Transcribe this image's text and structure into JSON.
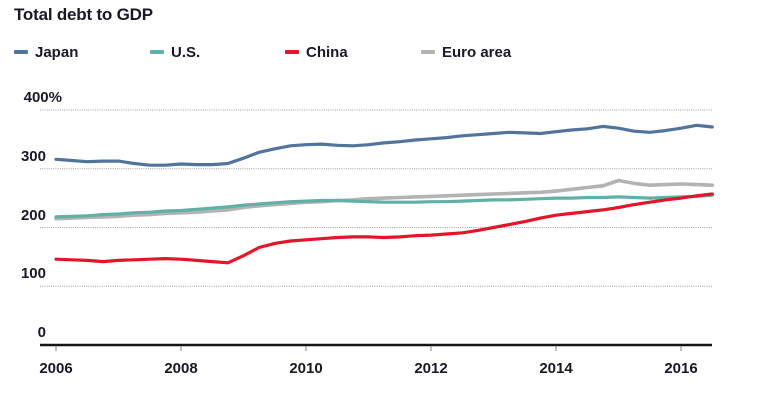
{
  "title": "Total debt to GDP",
  "legend": [
    {
      "label": "Japan"
    },
    {
      "label": "U.S."
    },
    {
      "label": "China"
    },
    {
      "label": "Euro area"
    }
  ],
  "chart_data": {
    "type": "line",
    "title": "Total debt to GDP",
    "xlabel": "",
    "ylabel": "",
    "ylim": [
      0,
      400
    ],
    "xlim": [
      2005.75,
      2016.55
    ],
    "grid": true,
    "legend_position": "top",
    "yticks": [
      0,
      100,
      200,
      300,
      400
    ],
    "ytick_labels": [
      "0",
      "100",
      "200",
      "300",
      "400%"
    ],
    "xticks": [
      2006,
      2008,
      2010,
      2012,
      2014,
      2016
    ],
    "xtick_labels": [
      "2006",
      "2008",
      "2010",
      "2012",
      "2014",
      "2016"
    ],
    "x": [
      2006,
      2006.25,
      2006.5,
      2006.75,
      2007,
      2007.25,
      2007.5,
      2007.75,
      2008,
      2008.25,
      2008.5,
      2008.75,
      2009,
      2009.25,
      2009.5,
      2009.75,
      2010,
      2010.25,
      2010.5,
      2010.75,
      2011,
      2011.25,
      2011.5,
      2011.75,
      2012,
      2012.25,
      2012.5,
      2012.75,
      2013,
      2013.25,
      2013.5,
      2013.75,
      2014,
      2014.25,
      2014.5,
      2014.75,
      2015,
      2015.25,
      2015.5,
      2015.75,
      2016,
      2016.25,
      2016.5
    ],
    "series": [
      {
        "name": "Japan",
        "color": "#51749c",
        "values": [
          316,
          314,
          312,
          313,
          313,
          309,
          306,
          306,
          308,
          307,
          307,
          309,
          318,
          328,
          334,
          339,
          341,
          342,
          340,
          339,
          341,
          344,
          346,
          349,
          351,
          353,
          356,
          358,
          360,
          362,
          361,
          360,
          363,
          366,
          368,
          372,
          369,
          364,
          362,
          365,
          369,
          374,
          371
        ]
      },
      {
        "name": "U.S.",
        "color": "#5fb0a6",
        "values": [
          218,
          219,
          220,
          222,
          223,
          225,
          226,
          228,
          229,
          231,
          233,
          235,
          238,
          240,
          242,
          244,
          245,
          246,
          246,
          245,
          244,
          243,
          243,
          243,
          244,
          244,
          245,
          246,
          247,
          247,
          248,
          249,
          250,
          250,
          251,
          251,
          252,
          251,
          250,
          251,
          252,
          253,
          255
        ]
      },
      {
        "name": "China",
        "color": "#e2152b",
        "values": [
          146,
          145,
          144,
          142,
          144,
          145,
          146,
          147,
          146,
          144,
          142,
          140,
          152,
          166,
          173,
          177,
          179,
          181,
          183,
          184,
          184,
          183,
          184,
          186,
          187,
          189,
          191,
          195,
          200,
          205,
          210,
          216,
          221,
          224,
          227,
          230,
          234,
          239,
          243,
          247,
          250,
          254,
          257
        ]
      },
      {
        "name": "Euro area",
        "color": "#b3b3b3",
        "values": [
          215,
          216,
          217,
          218,
          219,
          221,
          222,
          224,
          225,
          226,
          228,
          230,
          234,
          237,
          239,
          241,
          243,
          244,
          246,
          247,
          249,
          250,
          251,
          252,
          253,
          254,
          255,
          256,
          257,
          258,
          259,
          260,
          262,
          265,
          268,
          271,
          280,
          275,
          272,
          273,
          274,
          273,
          272
        ]
      }
    ]
  }
}
